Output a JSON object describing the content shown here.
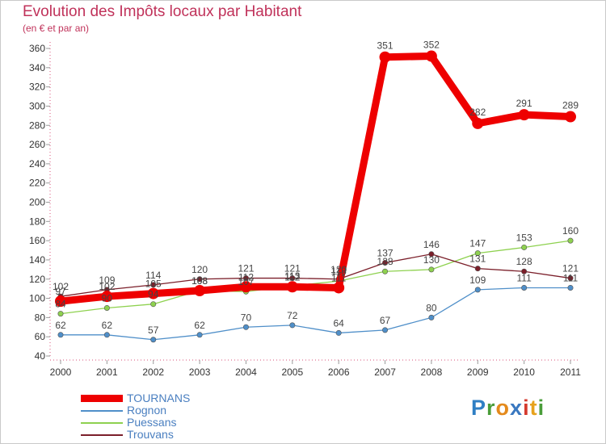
{
  "header": {
    "title": "Evolution des Impôts locaux par Habitant",
    "subtitle": "(en € et par an)"
  },
  "chart_data": {
    "type": "line",
    "title": "Evolution des Impôts locaux par Habitant",
    "subtitle": "(en € et par an)",
    "xlabel": "",
    "ylabel": "",
    "x": [
      "2000",
      "2001",
      "2002",
      "2003",
      "2004",
      "2005",
      "2006",
      "2007",
      "2008",
      "2009",
      "2010",
      "2011"
    ],
    "ylim": [
      40,
      360
    ],
    "yticks": [
      40,
      60,
      80,
      100,
      120,
      140,
      160,
      180,
      200,
      220,
      240,
      260,
      280,
      300,
      320,
      340,
      360
    ],
    "grid": false,
    "legend_position": "bottom-left",
    "series": [
      {
        "name": "TOURNANS",
        "color": "#ee0000",
        "values": [
          97,
          102,
          105,
          108,
          112,
          112,
          111,
          351,
          352,
          282,
          291,
          289
        ]
      },
      {
        "name": "Rognon",
        "color": "#4f8fc9",
        "values": [
          62,
          62,
          57,
          62,
          70,
          72,
          64,
          67,
          80,
          109,
          111,
          111
        ]
      },
      {
        "name": "Puessans",
        "color": "#8ed14f",
        "values": [
          84,
          90,
          94,
          108,
          107,
          113,
          118,
          128,
          130,
          147,
          153,
          160
        ]
      },
      {
        "name": "Trouvans",
        "color": "#7b1f2a",
        "values": [
          102,
          109,
          114,
          120,
          121,
          121,
          120,
          137,
          146,
          131,
          128,
          121
        ]
      }
    ]
  },
  "logo": {
    "letters": [
      "P",
      "r",
      "o",
      "x",
      "i",
      "t",
      "i"
    ],
    "colors": [
      "#2f7fc4",
      "#4a9d3a",
      "#e48a1c",
      "#3a78c0",
      "#d43a2e",
      "#e7a21d",
      "#4a9d3a"
    ]
  }
}
